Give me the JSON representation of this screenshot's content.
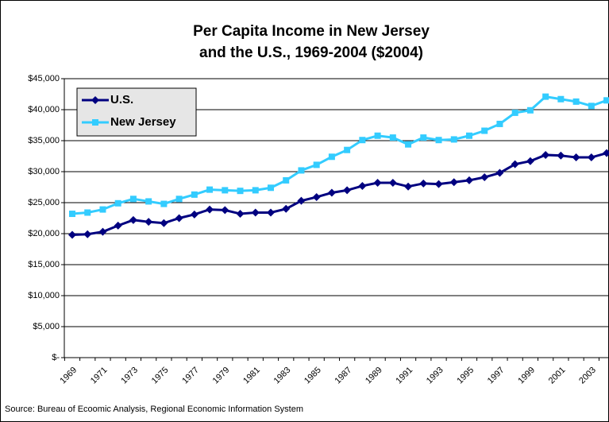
{
  "chart_data": {
    "type": "line",
    "title": [
      "Per Capita Income in New Jersey",
      "and the U.S., 1969-2004 ($2004)"
    ],
    "source": "Source: Bureau of Ecoomic Analysis, Regional Economic Information System",
    "categories": [
      "1969",
      null,
      "1971",
      null,
      "1973",
      null,
      "1975",
      null,
      "1977",
      null,
      "1979",
      null,
      "1981",
      null,
      "1983",
      null,
      "1985",
      null,
      "1987",
      null,
      "1989",
      null,
      "1991",
      null,
      "1993",
      null,
      "1995",
      null,
      "1997",
      null,
      "1999",
      null,
      "2001",
      null,
      "2003",
      null
    ],
    "series": [
      {
        "name": "U.S.",
        "color": "#000080",
        "marker": "diamond",
        "values": [
          19800,
          19900,
          20300,
          21300,
          22200,
          21900,
          21700,
          22500,
          23100,
          23900,
          23800,
          23200,
          23400,
          23400,
          24000,
          25300,
          25900,
          26600,
          27000,
          27700,
          28200,
          28200,
          27600,
          28100,
          28000,
          28300,
          28600,
          29100,
          29800,
          31200,
          31700,
          32700,
          32600,
          32300,
          32300,
          33000
        ]
      },
      {
        "name": "New Jersey",
        "color": "#33ccff",
        "marker": "square",
        "values": [
          23200,
          23400,
          23900,
          24900,
          25600,
          25200,
          24800,
          25600,
          26300,
          27100,
          27000,
          26900,
          27000,
          27400,
          28600,
          30200,
          31100,
          32400,
          33500,
          35100,
          35800,
          35500,
          34400,
          35500,
          35100,
          35200,
          35800,
          36600,
          37700,
          39500,
          39900,
          42100,
          41700,
          41300,
          40600,
          41500
        ]
      }
    ],
    "ylim": [
      0,
      45000
    ],
    "yticks": [
      {
        "value": 0,
        "label": "$-"
      },
      {
        "value": 5000,
        "label": "$5,000"
      },
      {
        "value": 10000,
        "label": "$10,000"
      },
      {
        "value": 15000,
        "label": "$15,000"
      },
      {
        "value": 20000,
        "label": "$20,000"
      },
      {
        "value": 25000,
        "label": "$25,000"
      },
      {
        "value": 30000,
        "label": "$30,000"
      },
      {
        "value": 35000,
        "label": "$35,000"
      },
      {
        "value": 40000,
        "label": "$40,000"
      },
      {
        "value": 45000,
        "label": "$45,000"
      }
    ],
    "grid": true,
    "legend": "top-left"
  }
}
